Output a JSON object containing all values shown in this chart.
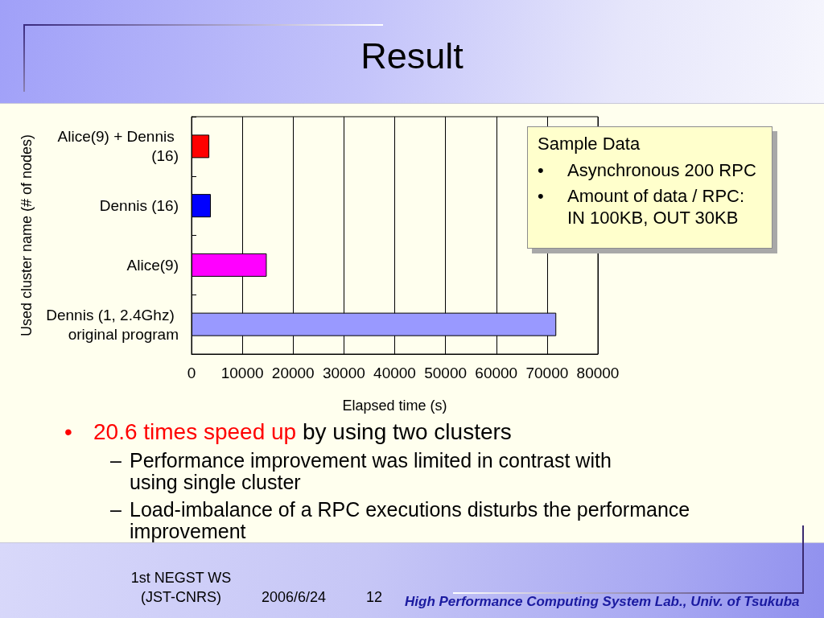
{
  "chart_data": {
    "type": "bar",
    "orientation": "horizontal",
    "title": "Result",
    "xlabel": "Elapsed time (s)",
    "ylabel": "Used cluster name (# of nodes)",
    "categories": [
      "Alice(9) + Dennis (16)",
      "Dennis (16)",
      "Alice(9)",
      "Dennis (1, 2.4Ghz) original program"
    ],
    "values": [
      3500,
      3800,
      14800,
      71800
    ],
    "colors": [
      "#ff0000",
      "#0000ff",
      "#ff00ff",
      "#9999ff"
    ],
    "xlim": [
      0,
      80000
    ],
    "xticks": [
      0,
      10000,
      20000,
      30000,
      40000,
      50000,
      60000,
      70000,
      80000
    ],
    "grid": "x",
    "annotations": [
      "Sample Data",
      "• Asynchronous 200 RPC",
      "• Amount of data / RPC: IN 100KB, OUT 30KB",
      "• 20.6 times speed up",
      "by using two clusters",
      "– Performance improvement was limited in contrast with using single cluster",
      "– Load-imbalance of a RPC executions disturbs the performance improvement",
      "1st NEGST WS (JST-CNRS)",
      "2006/6/24",
      "12",
      "High Performance Computing System Lab., Univ. of Tsukuba"
    ]
  }
}
